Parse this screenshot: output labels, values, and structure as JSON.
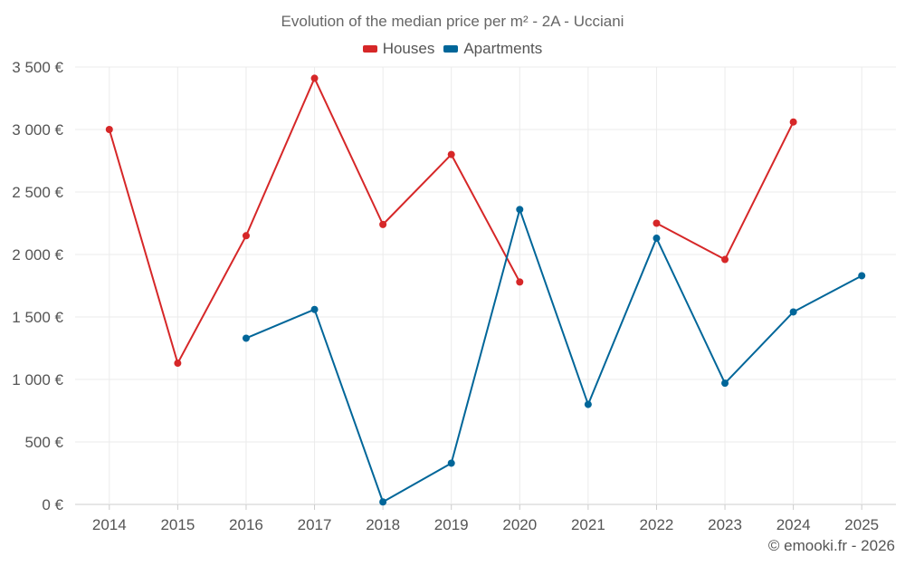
{
  "chart_data": {
    "type": "line",
    "title": "Evolution of the median price per m² - 2A - Ucciani",
    "categories": [
      "2014",
      "2015",
      "2016",
      "2017",
      "2018",
      "2019",
      "2020",
      "2021",
      "2022",
      "2023",
      "2024",
      "2025"
    ],
    "series": [
      {
        "name": "Houses",
        "color": "#d62728",
        "values": [
          3000,
          1130,
          2150,
          3410,
          2240,
          2800,
          1780,
          null,
          2250,
          1960,
          3060,
          null
        ]
      },
      {
        "name": "Apartments",
        "color": "#006699",
        "values": [
          null,
          null,
          1330,
          1560,
          20,
          330,
          2360,
          800,
          2130,
          970,
          1540,
          1830
        ]
      }
    ],
    "xlabel": "",
    "ylabel": "",
    "ylim": [
      0,
      3500
    ],
    "yticks": [
      0,
      500,
      1000,
      1500,
      2000,
      2500,
      3000,
      3500
    ],
    "ytick_labels": [
      "0 €",
      "500 €",
      "1 000 €",
      "1 500 €",
      "2 000 €",
      "2 500 €",
      "3 000 €",
      "3 500 €"
    ],
    "grid": true,
    "legend_position": "top-center"
  },
  "footer": {
    "copyright": "© emooki.fr - 2026"
  }
}
